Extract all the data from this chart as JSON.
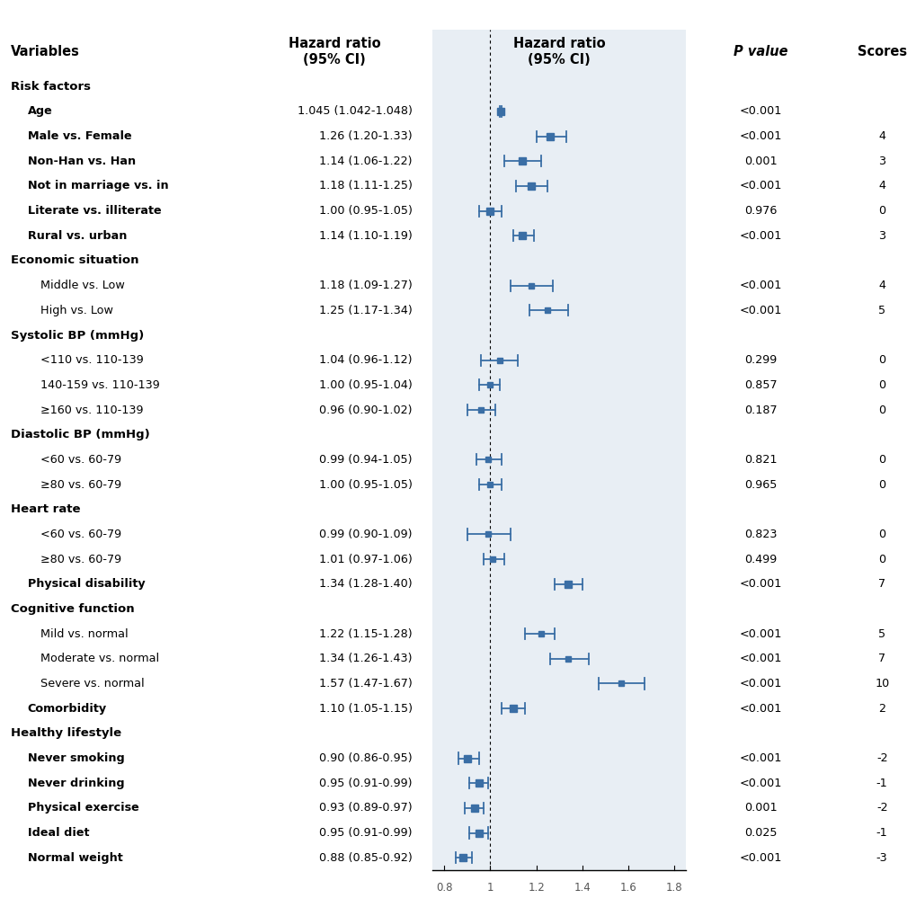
{
  "rows": [
    {
      "label": "Risk factors",
      "type": "header",
      "bold": true,
      "indent": 0
    },
    {
      "label": "Age",
      "hr_text": "1.045 (1.042-1.048)",
      "hr": 1.045,
      "ci_low": 1.042,
      "ci_high": 1.048,
      "p": "<0.001",
      "score": "",
      "type": "data",
      "bold": true,
      "indent": 1
    },
    {
      "label": "Male vs. Female",
      "hr_text": "1.26 (1.20-1.33)",
      "hr": 1.26,
      "ci_low": 1.2,
      "ci_high": 1.33,
      "p": "<0.001",
      "score": "4",
      "type": "data",
      "bold": true,
      "indent": 1
    },
    {
      "label": "Non-Han vs. Han",
      "hr_text": "1.14 (1.06-1.22)",
      "hr": 1.14,
      "ci_low": 1.06,
      "ci_high": 1.22,
      "p": "0.001",
      "score": "3",
      "type": "data",
      "bold": true,
      "indent": 1
    },
    {
      "label": "Not in marriage vs. in",
      "hr_text": "1.18 (1.11-1.25)",
      "hr": 1.18,
      "ci_low": 1.11,
      "ci_high": 1.25,
      "p": "<0.001",
      "score": "4",
      "type": "data",
      "bold": true,
      "indent": 1
    },
    {
      "label": "Literate vs. illiterate",
      "hr_text": "1.00 (0.95-1.05)",
      "hr": 1.0,
      "ci_low": 0.95,
      "ci_high": 1.05,
      "p": "0.976",
      "score": "0",
      "type": "data",
      "bold": true,
      "indent": 1
    },
    {
      "label": "Rural vs. urban",
      "hr_text": "1.14 (1.10-1.19)",
      "hr": 1.14,
      "ci_low": 1.1,
      "ci_high": 1.19,
      "p": "<0.001",
      "score": "3",
      "type": "data",
      "bold": true,
      "indent": 1
    },
    {
      "label": "Economic situation",
      "type": "header",
      "bold": true,
      "indent": 0
    },
    {
      "label": "Middle vs. Low",
      "hr_text": "1.18 (1.09-1.27)",
      "hr": 1.18,
      "ci_low": 1.09,
      "ci_high": 1.27,
      "p": "<0.001",
      "score": "4",
      "type": "data",
      "bold": false,
      "indent": 2
    },
    {
      "label": "High vs. Low",
      "hr_text": "1.25 (1.17-1.34)",
      "hr": 1.25,
      "ci_low": 1.17,
      "ci_high": 1.34,
      "p": "<0.001",
      "score": "5",
      "type": "data",
      "bold": false,
      "indent": 2
    },
    {
      "label": "Systolic BP (mmHg)",
      "type": "header",
      "bold": true,
      "indent": 0
    },
    {
      "label": "<110 vs. 110-139",
      "hr_text": "1.04 (0.96-1.12)",
      "hr": 1.04,
      "ci_low": 0.96,
      "ci_high": 1.12,
      "p": "0.299",
      "score": "0",
      "type": "data",
      "bold": false,
      "indent": 2
    },
    {
      "label": "140-159 vs. 110-139",
      "hr_text": "1.00 (0.95-1.04)",
      "hr": 1.0,
      "ci_low": 0.95,
      "ci_high": 1.04,
      "p": "0.857",
      "score": "0",
      "type": "data",
      "bold": false,
      "indent": 2
    },
    {
      "label": "≥160 vs. 110-139",
      "hr_text": "0.96 (0.90-1.02)",
      "hr": 0.96,
      "ci_low": 0.9,
      "ci_high": 1.02,
      "p": "0.187",
      "score": "0",
      "type": "data",
      "bold": false,
      "indent": 2
    },
    {
      "label": "Diastolic BP (mmHg)",
      "type": "header",
      "bold": true,
      "indent": 0
    },
    {
      "label": "<60 vs. 60-79",
      "hr_text": "0.99 (0.94-1.05)",
      "hr": 0.99,
      "ci_low": 0.94,
      "ci_high": 1.05,
      "p": "0.821",
      "score": "0",
      "type": "data",
      "bold": false,
      "indent": 2
    },
    {
      "label": "≥80 vs. 60-79",
      "hr_text": "1.00 (0.95-1.05)",
      "hr": 1.0,
      "ci_low": 0.95,
      "ci_high": 1.05,
      "p": "0.965",
      "score": "0",
      "type": "data",
      "bold": false,
      "indent": 2
    },
    {
      "label": "Heart rate",
      "type": "header",
      "bold": true,
      "indent": 0
    },
    {
      "label": "<60 vs. 60-79",
      "hr_text": "0.99 (0.90-1.09)",
      "hr": 0.99,
      "ci_low": 0.9,
      "ci_high": 1.09,
      "p": "0.823",
      "score": "0",
      "type": "data",
      "bold": false,
      "indent": 2
    },
    {
      "label": "≥80 vs. 60-79",
      "hr_text": "1.01 (0.97-1.06)",
      "hr": 1.01,
      "ci_low": 0.97,
      "ci_high": 1.06,
      "p": "0.499",
      "score": "0",
      "type": "data",
      "bold": false,
      "indent": 2
    },
    {
      "label": "Physical disability",
      "hr_text": "1.34 (1.28-1.40)",
      "hr": 1.34,
      "ci_low": 1.28,
      "ci_high": 1.4,
      "p": "<0.001",
      "score": "7",
      "type": "data",
      "bold": true,
      "indent": 1
    },
    {
      "label": "Cognitive function",
      "type": "header",
      "bold": true,
      "indent": 0
    },
    {
      "label": "Mild vs. normal",
      "hr_text": "1.22 (1.15-1.28)",
      "hr": 1.22,
      "ci_low": 1.15,
      "ci_high": 1.28,
      "p": "<0.001",
      "score": "5",
      "type": "data",
      "bold": false,
      "indent": 2
    },
    {
      "label": "Moderate vs. normal",
      "hr_text": "1.34 (1.26-1.43)",
      "hr": 1.34,
      "ci_low": 1.26,
      "ci_high": 1.43,
      "p": "<0.001",
      "score": "7",
      "type": "data",
      "bold": false,
      "indent": 2
    },
    {
      "label": "Severe vs. normal",
      "hr_text": "1.57 (1.47-1.67)",
      "hr": 1.57,
      "ci_low": 1.47,
      "ci_high": 1.67,
      "p": "<0.001",
      "score": "10",
      "type": "data",
      "bold": false,
      "indent": 2
    },
    {
      "label": "Comorbidity",
      "hr_text": "1.10 (1.05-1.15)",
      "hr": 1.1,
      "ci_low": 1.05,
      "ci_high": 1.15,
      "p": "<0.001",
      "score": "2",
      "type": "data",
      "bold": true,
      "indent": 1
    },
    {
      "label": "Healthy lifestyle",
      "type": "header",
      "bold": true,
      "indent": 0
    },
    {
      "label": "Never smoking",
      "hr_text": "0.90 (0.86-0.95)",
      "hr": 0.9,
      "ci_low": 0.86,
      "ci_high": 0.95,
      "p": "<0.001",
      "score": "-2",
      "type": "data",
      "bold": true,
      "indent": 1
    },
    {
      "label": "Never drinking",
      "hr_text": "0.95 (0.91-0.99)",
      "hr": 0.95,
      "ci_low": 0.91,
      "ci_high": 0.99,
      "p": "<0.001",
      "score": "-1",
      "type": "data",
      "bold": true,
      "indent": 1
    },
    {
      "label": "Physical exercise",
      "hr_text": "0.93 (0.89-0.97)",
      "hr": 0.93,
      "ci_low": 0.89,
      "ci_high": 0.97,
      "p": "0.001",
      "score": "-2",
      "type": "data",
      "bold": true,
      "indent": 1
    },
    {
      "label": "Ideal diet",
      "hr_text": "0.95 (0.91-0.99)",
      "hr": 0.95,
      "ci_low": 0.91,
      "ci_high": 0.99,
      "p": "0.025",
      "score": "-1",
      "type": "data",
      "bold": true,
      "indent": 1
    },
    {
      "label": "Normal weight",
      "hr_text": "0.88 (0.85-0.92)",
      "hr": 0.88,
      "ci_low": 0.85,
      "ci_high": 0.92,
      "p": "<0.001",
      "score": "-3",
      "type": "data",
      "bold": true,
      "indent": 1
    }
  ],
  "col_headers": {
    "variables": "Variables",
    "hr_text": "Hazard ratio\n(95% CI)",
    "plot": "Hazard ratio\n(95% CI)",
    "p": "P value",
    "score": "Scores"
  },
  "x_min": 0.75,
  "x_max": 1.85,
  "x_ticks": [
    0.8,
    1.0,
    1.2,
    1.4,
    1.6,
    1.8
  ],
  "x_tick_labels": [
    "0.8",
    "1",
    "1.2",
    "1.4",
    "1.6",
    "1.8"
  ],
  "ref_line": 1.0,
  "plot_color": "#3A6EA5",
  "bg_color": "#E8EEF4",
  "fig_width": 10.2,
  "fig_height": 10.19,
  "dpi": 100
}
